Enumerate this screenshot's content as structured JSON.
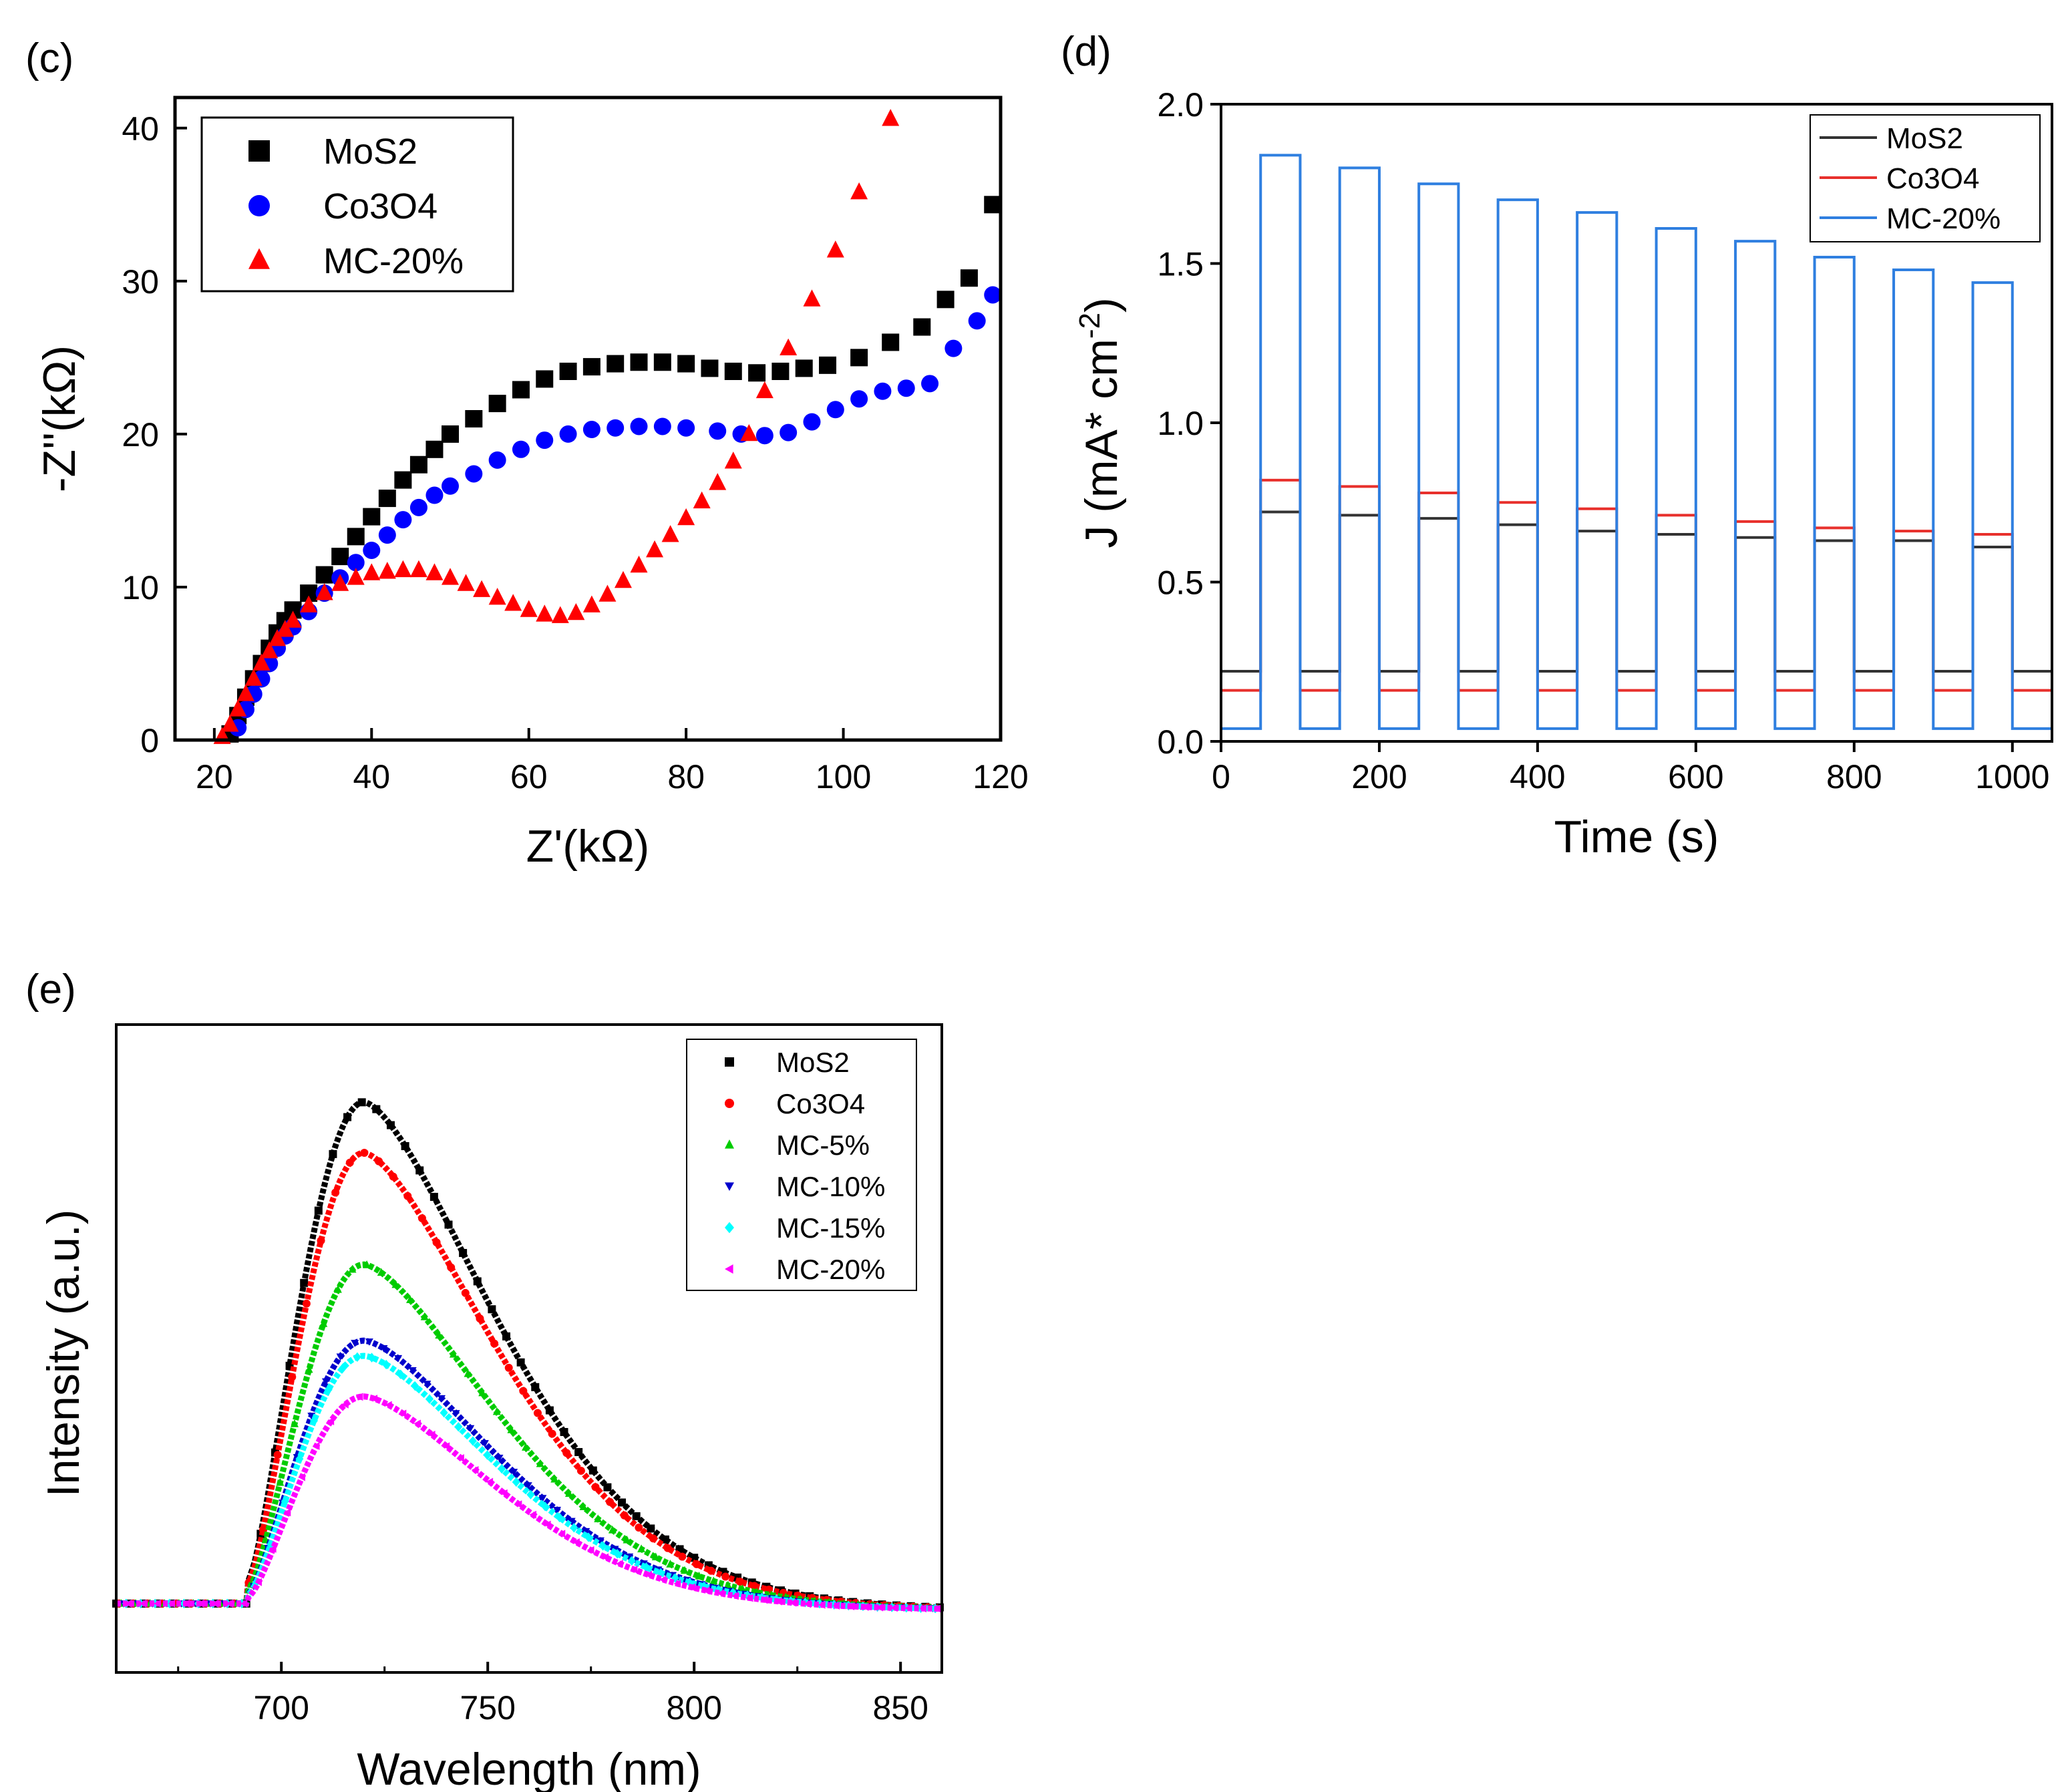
{
  "chart_data": [
    {
      "panel": "(c)",
      "type": "scatter",
      "title": "",
      "xlabel": "Z'(kΩ)",
      "ylabel": "-Z''(kΩ)",
      "xlim": [
        15,
        120
      ],
      "ylim": [
        0,
        42
      ],
      "xticks": [
        20,
        40,
        60,
        80,
        100,
        120
      ],
      "yticks": [
        0,
        10,
        20,
        30,
        40
      ],
      "legend_position": "top-left",
      "series": [
        {
          "name": "MoS2",
          "marker": "square",
          "color": "#000000",
          "points": [
            [
              22,
              0.4
            ],
            [
              23,
              1.6
            ],
            [
              24,
              2.8
            ],
            [
              25,
              4
            ],
            [
              26,
              5
            ],
            [
              27,
              6
            ],
            [
              28,
              7
            ],
            [
              29,
              7.8
            ],
            [
              30,
              8.5
            ],
            [
              32,
              9.6
            ],
            [
              34,
              10.8
            ],
            [
              36,
              12
            ],
            [
              38,
              13.3
            ],
            [
              40,
              14.6
            ],
            [
              42,
              15.8
            ],
            [
              44,
              17
            ],
            [
              46,
              18
            ],
            [
              48,
              19
            ],
            [
              50,
              20
            ],
            [
              53,
              21
            ],
            [
              56,
              22
            ],
            [
              59,
              22.9
            ],
            [
              62,
              23.6
            ],
            [
              65,
              24.1
            ],
            [
              68,
              24.4
            ],
            [
              71,
              24.6
            ],
            [
              74,
              24.7
            ],
            [
              77,
              24.7
            ],
            [
              80,
              24.6
            ],
            [
              83,
              24.3
            ],
            [
              86,
              24.1
            ],
            [
              89,
              24
            ],
            [
              92,
              24.1
            ],
            [
              95,
              24.3
            ],
            [
              98,
              24.5
            ],
            [
              102,
              25
            ],
            [
              106,
              26
            ],
            [
              110,
              27
            ],
            [
              113,
              28.8
            ],
            [
              116,
              30.2
            ],
            [
              119,
              35
            ]
          ]
        },
        {
          "name": "Co3O4",
          "marker": "circle",
          "color": "#0000ff",
          "points": [
            [
              23,
              0.8
            ],
            [
              24,
              2
            ],
            [
              25,
              3
            ],
            [
              26,
              4
            ],
            [
              27,
              5
            ],
            [
              28,
              6
            ],
            [
              29,
              6.8
            ],
            [
              30,
              7.4
            ],
            [
              32,
              8.4
            ],
            [
              34,
              9.6
            ],
            [
              36,
              10.6
            ],
            [
              38,
              11.6
            ],
            [
              40,
              12.4
            ],
            [
              42,
              13.4
            ],
            [
              44,
              14.4
            ],
            [
              46,
              15.2
            ],
            [
              48,
              16
            ],
            [
              50,
              16.6
            ],
            [
              53,
              17.4
            ],
            [
              56,
              18.3
            ],
            [
              59,
              19
            ],
            [
              62,
              19.6
            ],
            [
              65,
              20
            ],
            [
              68,
              20.3
            ],
            [
              71,
              20.4
            ],
            [
              74,
              20.5
            ],
            [
              77,
              20.5
            ],
            [
              80,
              20.4
            ],
            [
              84,
              20.2
            ],
            [
              87,
              20
            ],
            [
              90,
              19.9
            ],
            [
              93,
              20.1
            ],
            [
              96,
              20.8
            ],
            [
              99,
              21.6
            ],
            [
              102,
              22.3
            ],
            [
              105,
              22.8
            ],
            [
              108,
              23
            ],
            [
              111,
              23.3
            ],
            [
              114,
              25.6
            ],
            [
              117,
              27.4
            ],
            [
              119,
              29.1
            ]
          ]
        },
        {
          "name": "MC-20%",
          "marker": "triangle-up",
          "color": "#ff0000",
          "points": [
            [
              21,
              0.2
            ],
            [
              22,
              1
            ],
            [
              23,
              2
            ],
            [
              24,
              3
            ],
            [
              25,
              4
            ],
            [
              26,
              5
            ],
            [
              27,
              5.8
            ],
            [
              28,
              6.6
            ],
            [
              29,
              7.2
            ],
            [
              30,
              7.8
            ],
            [
              32,
              8.8
            ],
            [
              34,
              9.6
            ],
            [
              36,
              10.2
            ],
            [
              38,
              10.6
            ],
            [
              40,
              10.9
            ],
            [
              42,
              11
            ],
            [
              44,
              11.1
            ],
            [
              46,
              11.1
            ],
            [
              48,
              10.9
            ],
            [
              50,
              10.6
            ],
            [
              52,
              10.2
            ],
            [
              54,
              9.8
            ],
            [
              56,
              9.3
            ],
            [
              58,
              8.9
            ],
            [
              60,
              8.5
            ],
            [
              62,
              8.2
            ],
            [
              64,
              8.1
            ],
            [
              66,
              8.3
            ],
            [
              68,
              8.8
            ],
            [
              70,
              9.5
            ],
            [
              72,
              10.4
            ],
            [
              74,
              11.4
            ],
            [
              76,
              12.4
            ],
            [
              78,
              13.4
            ],
            [
              80,
              14.5
            ],
            [
              82,
              15.6
            ],
            [
              84,
              16.8
            ],
            [
              86,
              18.2
            ],
            [
              88,
              20
            ],
            [
              90,
              22.8
            ],
            [
              93,
              25.6
            ],
            [
              96,
              28.8
            ],
            [
              99,
              32
            ],
            [
              102,
              35.8
            ],
            [
              106,
              40.6
            ]
          ]
        }
      ]
    },
    {
      "panel": "(d)",
      "type": "line",
      "title": "",
      "xlabel": "Time (s)",
      "ylabel": "J (mA* cm-2)",
      "ylabel_main": "J (mA* cm",
      "ylabel_sup": "-2",
      "ylabel_end": ")",
      "xlim": [
        0,
        1050
      ],
      "ylim": [
        0,
        2.0
      ],
      "xticks": [
        0,
        200,
        400,
        600,
        800,
        1000
      ],
      "yticks": [
        0.0,
        0.5,
        1.0,
        1.5,
        2.0
      ],
      "ytick_labels": [
        "0.0",
        "0.5",
        "1.0",
        "1.5",
        "2.0"
      ],
      "legend_position": "top-right",
      "light_on_intervals": [
        [
          50,
          100
        ],
        [
          150,
          200
        ],
        [
          250,
          300
        ],
        [
          350,
          400
        ],
        [
          450,
          500
        ],
        [
          550,
          600
        ],
        [
          650,
          700
        ],
        [
          750,
          800
        ],
        [
          850,
          900
        ],
        [
          950,
          1000
        ]
      ],
      "series": [
        {
          "name": "MoS2",
          "color": "#333333",
          "dark": 0.22,
          "on_values": [
            0.72,
            0.71,
            0.7,
            0.68,
            0.66,
            0.65,
            0.64,
            0.63,
            0.63,
            0.61
          ]
        },
        {
          "name": "Co3O4",
          "color": "#e8302c",
          "dark": 0.16,
          "on_values": [
            0.82,
            0.8,
            0.78,
            0.75,
            0.73,
            0.71,
            0.69,
            0.67,
            0.66,
            0.65
          ]
        },
        {
          "name": "MC-20%",
          "color": "#2f7fe0",
          "dark": 0.04,
          "on_values": [
            1.84,
            1.8,
            1.75,
            1.7,
            1.66,
            1.61,
            1.57,
            1.52,
            1.48,
            1.44
          ]
        }
      ]
    },
    {
      "panel": "(e)",
      "type": "line",
      "title": "",
      "xlabel": "Wavelength (nm)",
      "ylabel": "Intensity (a.u.)",
      "xlim": [
        660,
        860
      ],
      "ylim": [
        0,
        1.08
      ],
      "xticks": [
        700,
        750,
        800,
        850
      ],
      "yticks": [],
      "legend_position": "top-right",
      "peak_wavelength": 720,
      "series": [
        {
          "name": "MoS2",
          "marker": "square",
          "color": "#000000",
          "peak": 1.0
        },
        {
          "name": "Co3O4",
          "marker": "circle",
          "color": "#ff0000",
          "peak": 0.9
        },
        {
          "name": "MC-5%",
          "marker": "triangle-up",
          "color": "#00cc00",
          "peak": 0.68
        },
        {
          "name": "MC-10%",
          "marker": "triangle-down",
          "color": "#0000cc",
          "peak": 0.53
        },
        {
          "name": "MC-15%",
          "marker": "diamond",
          "color": "#00ffff",
          "peak": 0.5
        },
        {
          "name": "MC-20%",
          "marker": "triangle-left",
          "color": "#ff00ff",
          "peak": 0.42
        }
      ]
    }
  ]
}
